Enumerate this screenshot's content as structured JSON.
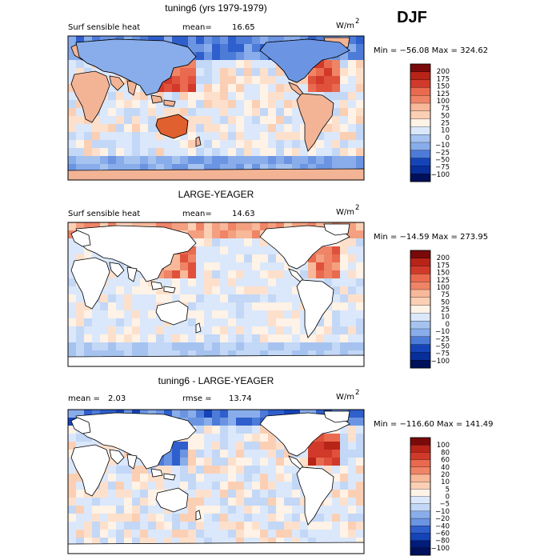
{
  "season": "DJF",
  "colors": {
    "pos_scale": [
      "#fff2e6",
      "#fde0cc",
      "#fbcfb4",
      "#f8b89a",
      "#f4a080",
      "#ef8466",
      "#e96a4e",
      "#e0513c",
      "#d1392a",
      "#b82418",
      "#9a140f",
      "#7a0a0a"
    ],
    "neg_scale": [
      "#dbe8fb",
      "#c3d7f6",
      "#a6c3f0",
      "#89adea",
      "#6b95e2",
      "#4d7bd8",
      "#2f5fcc",
      "#1544b8",
      "#082e9a",
      "#021c7a",
      "#00105a"
    ],
    "land": "#ffffff"
  },
  "chart_data": [
    {
      "type": "heatmap",
      "title": "tuning6 (yrs 1979-1979)",
      "variable": "Surf sensible heat",
      "stat_label": "mean=",
      "stat_value": "16.65",
      "units": "W/m",
      "units_exp": "2",
      "min_max": "Min = −56.08 Max = 324.62",
      "colorbar": [
        "200",
        "175",
        "150",
        "125",
        "100",
        "75",
        "50",
        "25",
        "10",
        "0",
        "−10",
        "−25",
        "−50",
        "−75",
        "−100"
      ],
      "n_pos": 8,
      "n_neg": 7
    },
    {
      "type": "heatmap",
      "title": "LARGE-YEAGER",
      "variable": "Surf sensible heat",
      "stat_label": "mean=",
      "stat_value": "14.63",
      "units": "W/m",
      "units_exp": "2",
      "min_max": "Min = −14.59 Max = 273.95",
      "colorbar": [
        "200",
        "175",
        "150",
        "125",
        "100",
        "75",
        "50",
        "25",
        "10",
        "0",
        "−10",
        "−25",
        "−50",
        "−75",
        "−100"
      ],
      "n_pos": 8,
      "n_neg": 7
    },
    {
      "type": "heatmap",
      "title": "tuning6 - LARGE-YEAGER",
      "variable": "",
      "stat_label": "mean =",
      "stat_value": "2.03",
      "rmse_label": "rmse =",
      "rmse_value": "13.74",
      "units": "W/m",
      "units_exp": "2",
      "min_max": "Min = −116.60 Max = 141.49",
      "colorbar": [
        "100",
        "80",
        "60",
        "40",
        "20",
        "10",
        "5",
        "0",
        "−5",
        "−10",
        "−20",
        "−40",
        "−60",
        "−80",
        "−100"
      ],
      "n_pos": 8,
      "n_neg": 8
    }
  ]
}
